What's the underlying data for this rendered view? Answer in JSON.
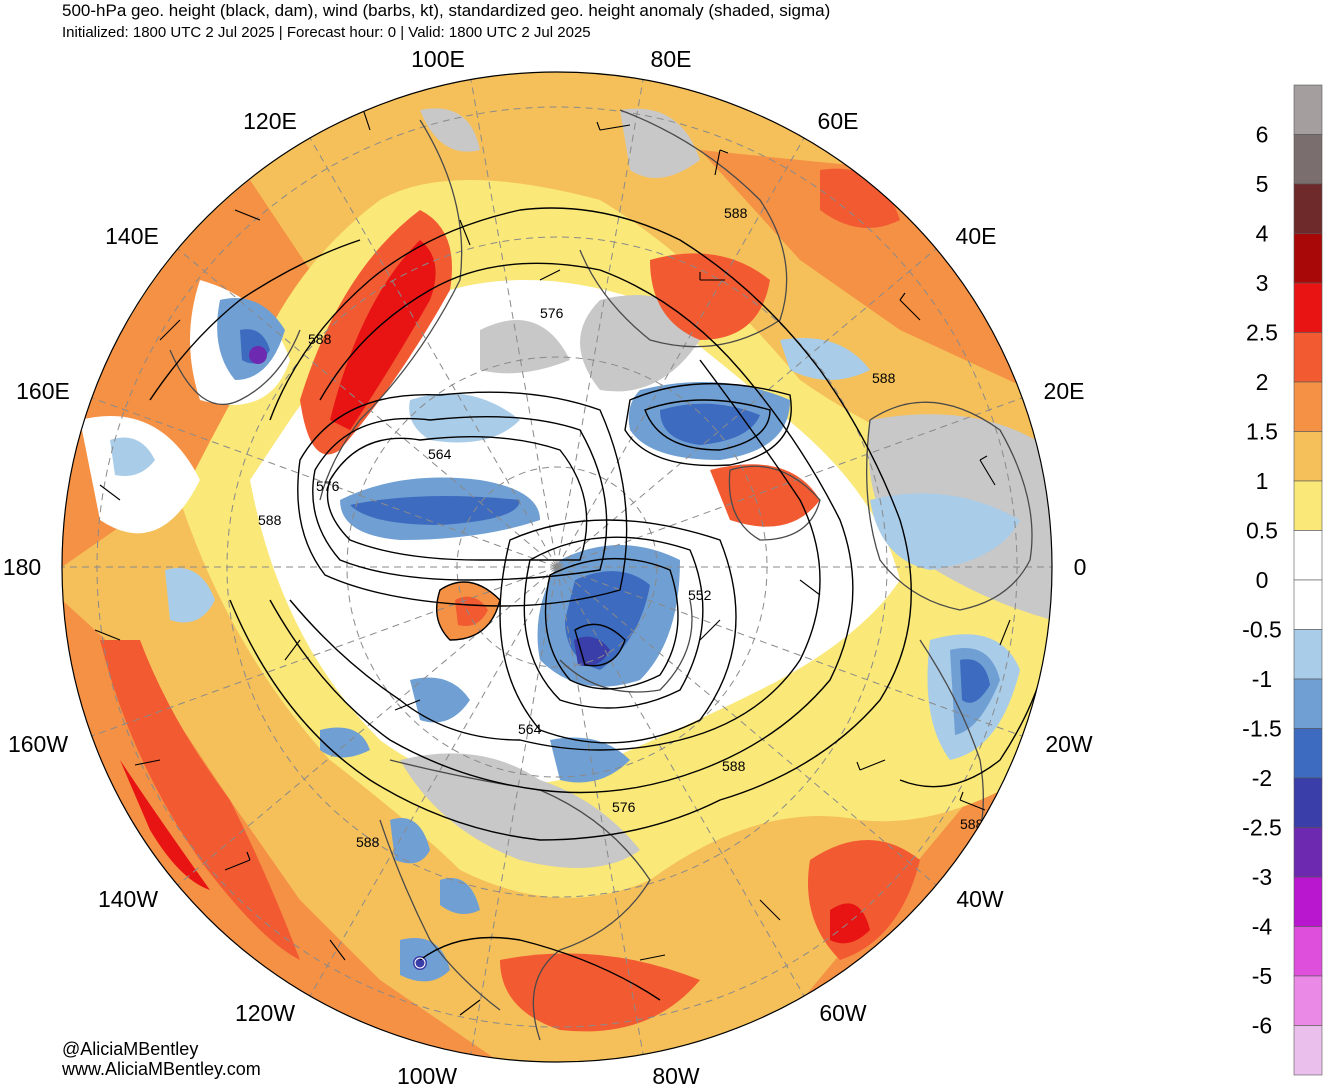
{
  "header": {
    "title": "500-hPa geo. height (black, dam), wind (barbs, kt), standardized geo. height anomaly (shaded, sigma)",
    "subtitle": "Initialized: 1800 UTC 2 Jul 2025 | Forecast hour: 0 | Valid: 1800 UTC 2 Jul 2025"
  },
  "map": {
    "projection": "north-polar-stereographic",
    "longitude_labels": [
      "100E",
      "80E",
      "120E",
      "60E",
      "140E",
      "40E",
      "160E",
      "20E",
      "180",
      "0",
      "160W",
      "20W",
      "140W",
      "40W",
      "120W",
      "60W",
      "100W",
      "80W"
    ],
    "contour_labels": [
      "588",
      "576",
      "588",
      "564",
      "576",
      "588",
      "552",
      "564",
      "588",
      "576",
      "588",
      "588",
      "588"
    ]
  },
  "colorbar": {
    "labels": [
      "6",
      "5",
      "4",
      "3",
      "2.5",
      "2",
      "1.5",
      "1",
      "0.5",
      "0",
      "-0.5",
      "-1",
      "-1.5",
      "-2",
      "-2.5",
      "-3",
      "-4",
      "-5",
      "-6"
    ],
    "colors": [
      "#a59e9e",
      "#7a6e6e",
      "#6e2a2a",
      "#a80808",
      "#e81414",
      "#f25a32",
      "#f59144",
      "#f5c05a",
      "#fae878",
      "#ffffff",
      "#ffffff",
      "#a9cce8",
      "#6f9fd3",
      "#3d6bbf",
      "#3a3ea8",
      "#6d2ab0",
      "#b816cf",
      "#de4fdc",
      "#eb8ae6",
      "#ebbfec"
    ]
  },
  "credits": {
    "handle": "@AliciaMBentley",
    "website": "www.AliciaMBentley.com"
  }
}
